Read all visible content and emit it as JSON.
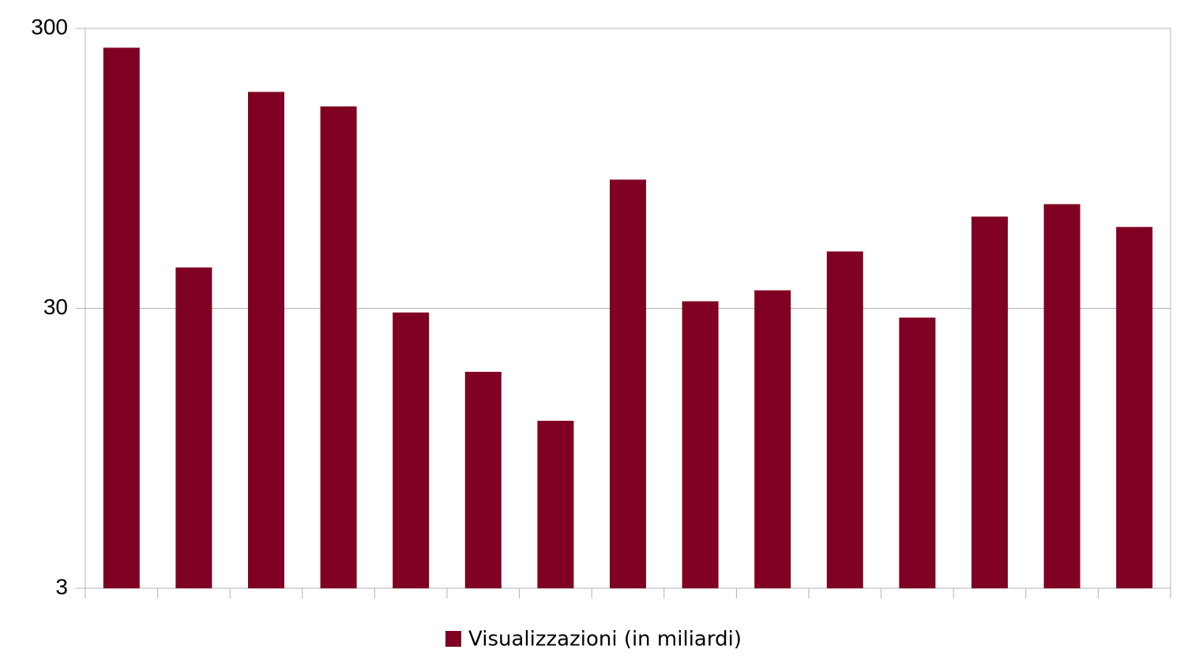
{
  "chart_data": {
    "type": "bar",
    "categories": [
      null,
      null,
      null,
      null,
      null,
      null,
      null,
      null,
      null,
      null,
      null,
      null,
      null,
      null,
      null
    ],
    "series": [
      {
        "name": "Visualizzazioni (in miliardi)",
        "color": "#7f0022",
        "values": [
          256,
          42,
          178,
          158,
          29,
          17.8,
          11.9,
          86.5,
          31.8,
          34.8,
          47.9,
          27.8,
          63.8,
          70.7,
          58.6
        ]
      }
    ],
    "log_scale": true,
    "ylim": [
      3,
      300
    ],
    "yticks": [
      3,
      30,
      300
    ],
    "grid": true,
    "legend": "bottom"
  }
}
